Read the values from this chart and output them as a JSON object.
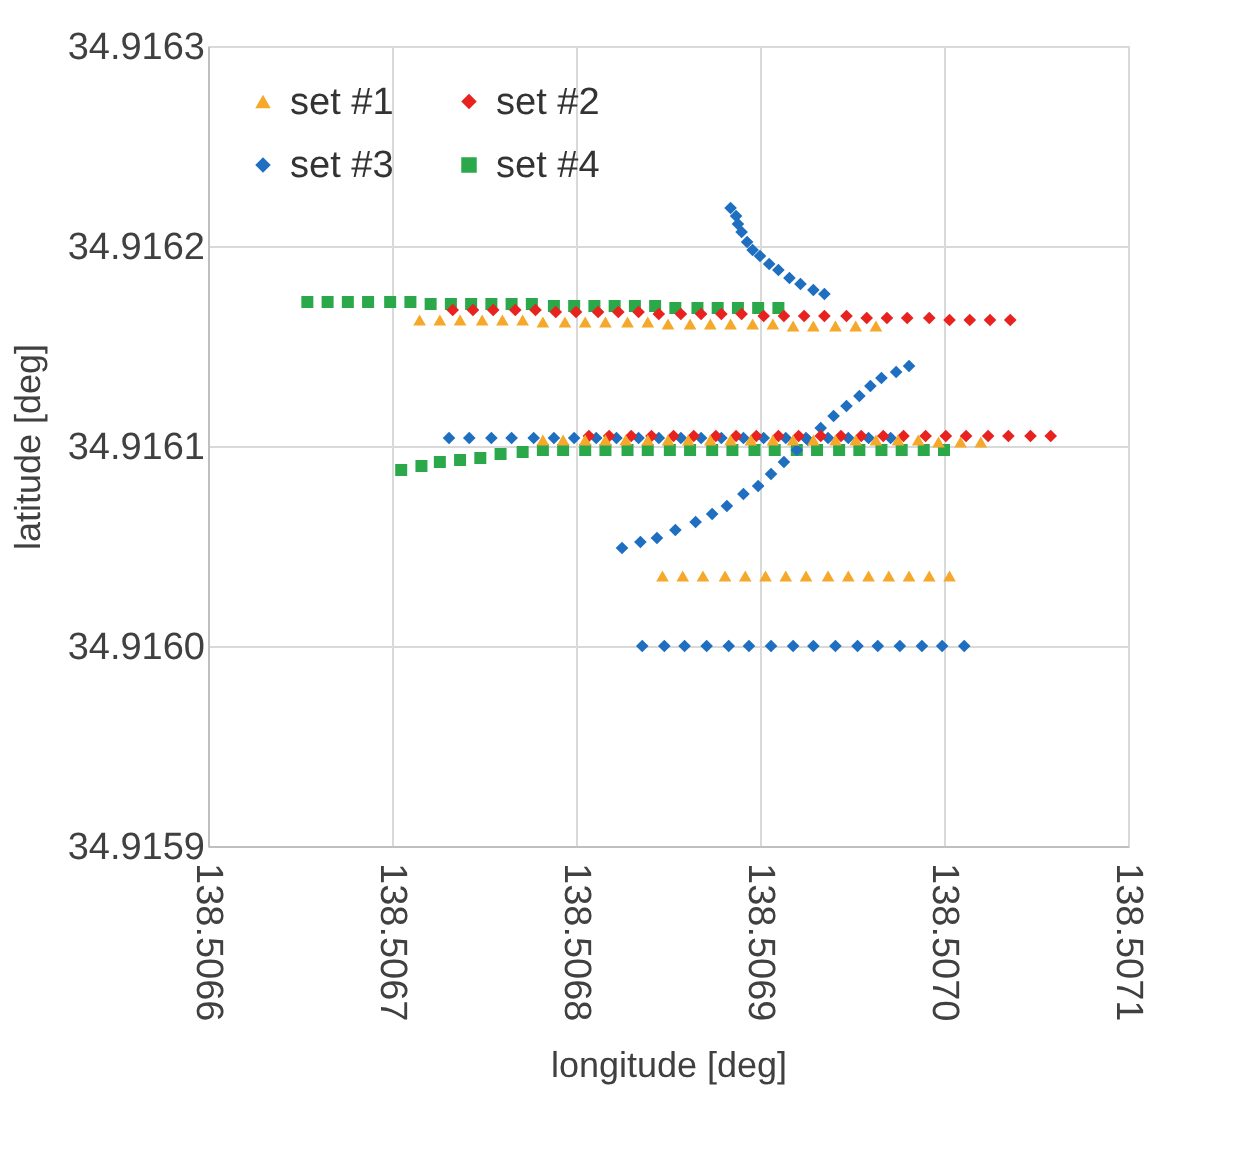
{
  "chart_data": {
    "type": "scatter",
    "xlabel": "longitude [deg]",
    "ylabel": "latitude [deg]",
    "xlim": [
      138.5066,
      138.5071
    ],
    "xticks": [
      138.5066,
      138.5067,
      138.5068,
      138.5069,
      {
        "value": 138.507,
        "label": "138.5070"
      },
      138.5071
    ],
    "ylim": [
      34.9159,
      34.9163
    ],
    "yticks": [
      34.9159,
      {
        "value": 34.916,
        "label": "34.9160"
      },
      34.9161,
      34.9162,
      34.9163
    ],
    "grid": true,
    "legend": "top left",
    "series": [
      {
        "name": "set #1",
        "color": "#f5a82a",
        "marker": "triangle",
        "x": [
          138.506715,
          138.506726,
          138.506737,
          138.506749,
          138.50676,
          138.506771,
          138.506782,
          138.506794,
          138.506805,
          138.506816,
          138.506828,
          138.506839,
          138.50685,
          138.506862,
          138.506873,
          138.506884,
          138.506896,
          138.506907,
          138.506918,
          138.506929,
          138.506941,
          138.506952,
          138.506963,
          138.506782,
          138.506793,
          138.506805,
          138.506816,
          138.506827,
          138.506839,
          138.50685,
          138.506861,
          138.506873,
          138.506884,
          138.506895,
          138.506907,
          138.506918,
          138.506929,
          138.506941,
          138.506952,
          138.506963,
          138.506975,
          138.506986,
          138.506997,
          138.507009,
          138.50702,
          138.506847,
          138.506858,
          138.506869,
          138.506881,
          138.506892,
          138.506903,
          138.506914,
          138.506925,
          138.506937,
          138.506948,
          138.506959,
          138.50697,
          138.506981,
          138.506992,
          138.507003
        ],
        "values": [
          34.916163,
          34.916163,
          34.916163,
          34.916163,
          34.916163,
          34.916163,
          34.916162,
          34.916162,
          34.916162,
          34.916162,
          34.916162,
          34.916162,
          34.916161,
          34.916161,
          34.916161,
          34.916161,
          34.916161,
          34.916161,
          34.91616,
          34.91616,
          34.91616,
          34.91616,
          34.91616,
          34.916103,
          34.916103,
          34.916103,
          34.916103,
          34.916103,
          34.916103,
          34.916103,
          34.916103,
          34.916103,
          34.916103,
          34.916103,
          34.916103,
          34.916103,
          34.916103,
          34.916103,
          34.916103,
          34.916103,
          34.916103,
          34.916103,
          34.916102,
          34.916102,
          34.916102,
          34.916035,
          34.916035,
          34.916035,
          34.916035,
          34.916035,
          34.916035,
          34.916035,
          34.916035,
          34.916035,
          34.916035,
          34.916035,
          34.916035,
          34.916035,
          34.916035,
          34.916035
        ]
      },
      {
        "name": "set #2",
        "color": "#e8231f",
        "marker": "diamond",
        "x": [
          138.506733,
          138.506744,
          138.506755,
          138.506767,
          138.506778,
          138.506789,
          138.5068,
          138.506812,
          138.506823,
          138.506834,
          138.506845,
          138.506857,
          138.506868,
          138.506879,
          138.50689,
          138.506902,
          138.506913,
          138.506924,
          138.506935,
          138.506947,
          138.506958,
          138.506969,
          138.50698,
          138.506992,
          138.507003,
          138.507014,
          138.507025,
          138.507036,
          138.506807,
          138.506818,
          138.50683,
          138.506841,
          138.506853,
          138.506864,
          138.506876,
          138.506887,
          138.506898,
          138.50691,
          138.506921,
          138.506933,
          138.506944,
          138.506955,
          138.506967,
          138.506978,
          138.50699,
          138.507001,
          138.507012,
          138.507024,
          138.507035,
          138.507047,
          138.507058
        ],
        "values": [
          34.916168,
          34.916168,
          34.916168,
          34.916168,
          34.916168,
          34.916167,
          34.916167,
          34.916167,
          34.916167,
          34.916167,
          34.916166,
          34.916166,
          34.916166,
          34.916166,
          34.916166,
          34.916165,
          34.916165,
          34.916165,
          34.916165,
          34.916165,
          34.916164,
          34.916164,
          34.916164,
          34.916164,
          34.916163,
          34.916163,
          34.916163,
          34.916163,
          34.916105,
          34.916105,
          34.916105,
          34.916105,
          34.916105,
          34.916105,
          34.916105,
          34.916105,
          34.916105,
          34.916105,
          34.916105,
          34.916105,
          34.916105,
          34.916105,
          34.916105,
          34.916105,
          34.916105,
          34.916105,
          34.916105,
          34.916105,
          34.916105,
          34.916105,
          34.916105
        ]
      },
      {
        "name": "set #3",
        "color": "#1f6fc1",
        "marker": "diamond",
        "x": [
          138.506884,
          138.506887,
          138.506888,
          138.50689,
          138.506893,
          138.506896,
          138.5069,
          138.506905,
          138.50691,
          138.506916,
          138.506922,
          138.506929,
          138.506935,
          138.506731,
          138.506742,
          138.506754,
          138.506765,
          138.506777,
          138.506788,
          138.506799,
          138.506811,
          138.506822,
          138.506834,
          138.506845,
          138.506857,
          138.506868,
          138.506879,
          138.506891,
          138.506902,
          138.506914,
          138.506925,
          138.506937,
          138.506948,
          138.506959,
          138.506971,
          138.506825,
          138.506835,
          138.506844,
          138.506854,
          138.506865,
          138.506874,
          138.506882,
          138.506891,
          138.506899,
          138.506906,
          138.506913,
          138.50692,
          138.506926,
          138.506933,
          138.50694,
          138.506947,
          138.506954,
          138.50696,
          138.506966,
          138.506974,
          138.506981,
          138.506836,
          138.506848,
          138.506859,
          138.506871,
          138.506883,
          138.506894,
          138.506906,
          138.506918,
          138.506929,
          138.506941,
          138.506953,
          138.506964,
          138.506976,
          138.506988,
          138.506999,
          138.507011
        ],
        "values": [
          34.916219,
          34.916215,
          34.916211,
          34.916207,
          34.916202,
          34.916198,
          34.916195,
          34.916191,
          34.916188,
          34.916184,
          34.916181,
          34.916178,
          34.916176,
          34.916104,
          34.916104,
          34.916104,
          34.916104,
          34.916104,
          34.916104,
          34.916104,
          34.916104,
          34.916104,
          34.916104,
          34.916104,
          34.916104,
          34.916104,
          34.916104,
          34.916104,
          34.916104,
          34.916104,
          34.916104,
          34.916104,
          34.916104,
          34.916104,
          34.916104,
          34.916049,
          34.916052,
          34.916054,
          34.916058,
          34.916062,
          34.916066,
          34.91607,
          34.916076,
          34.91608,
          34.916086,
          34.916092,
          34.916098,
          34.916103,
          34.916109,
          34.916115,
          34.91612,
          34.916125,
          34.91613,
          34.916134,
          34.916137,
          34.91614,
          34.916,
          34.916,
          34.916,
          34.916,
          34.916,
          34.916,
          34.916,
          34.916,
          34.916,
          34.916,
          34.916,
          34.916,
          34.916,
          34.916,
          34.916,
          34.916
        ]
      },
      {
        "name": "set #4",
        "color": "#2aa84a",
        "marker": "square",
        "x": [
          138.506654,
          138.506665,
          138.506676,
          138.506687,
          138.506699,
          138.50671,
          138.506721,
          138.506732,
          138.506743,
          138.506754,
          138.506765,
          138.506776,
          138.506788,
          138.506799,
          138.50681,
          138.506821,
          138.506832,
          138.506843,
          138.506854,
          138.506866,
          138.506877,
          138.506888,
          138.506899,
          138.50691,
          138.506705,
          138.506716,
          138.506726,
          138.506737,
          138.506748,
          138.506759,
          138.506771,
          138.506782,
          138.506793,
          138.506805,
          138.506816,
          138.506828,
          138.506839,
          138.506851,
          138.506862,
          138.506874,
          138.506885,
          138.506897,
          138.506908,
          138.50692,
          138.506931,
          138.506943,
          138.506954,
          138.506966,
          138.506977,
          138.506989,
          138.507
        ],
        "values": [
          34.916172,
          34.916172,
          34.916172,
          34.916172,
          34.916172,
          34.916172,
          34.916171,
          34.916171,
          34.916171,
          34.916171,
          34.916171,
          34.916171,
          34.91617,
          34.91617,
          34.91617,
          34.91617,
          34.91617,
          34.91617,
          34.916169,
          34.916169,
          34.916169,
          34.916169,
          34.916169,
          34.916169,
          34.916088,
          34.91609,
          34.916092,
          34.916093,
          34.916094,
          34.916096,
          34.916097,
          34.916098,
          34.916098,
          34.916098,
          34.916098,
          34.916098,
          34.916098,
          34.916098,
          34.916098,
          34.916098,
          34.916098,
          34.916098,
          34.916098,
          34.916098,
          34.916098,
          34.916098,
          34.916098,
          34.916098,
          34.916098,
          34.916098,
          34.916098
        ]
      }
    ]
  }
}
